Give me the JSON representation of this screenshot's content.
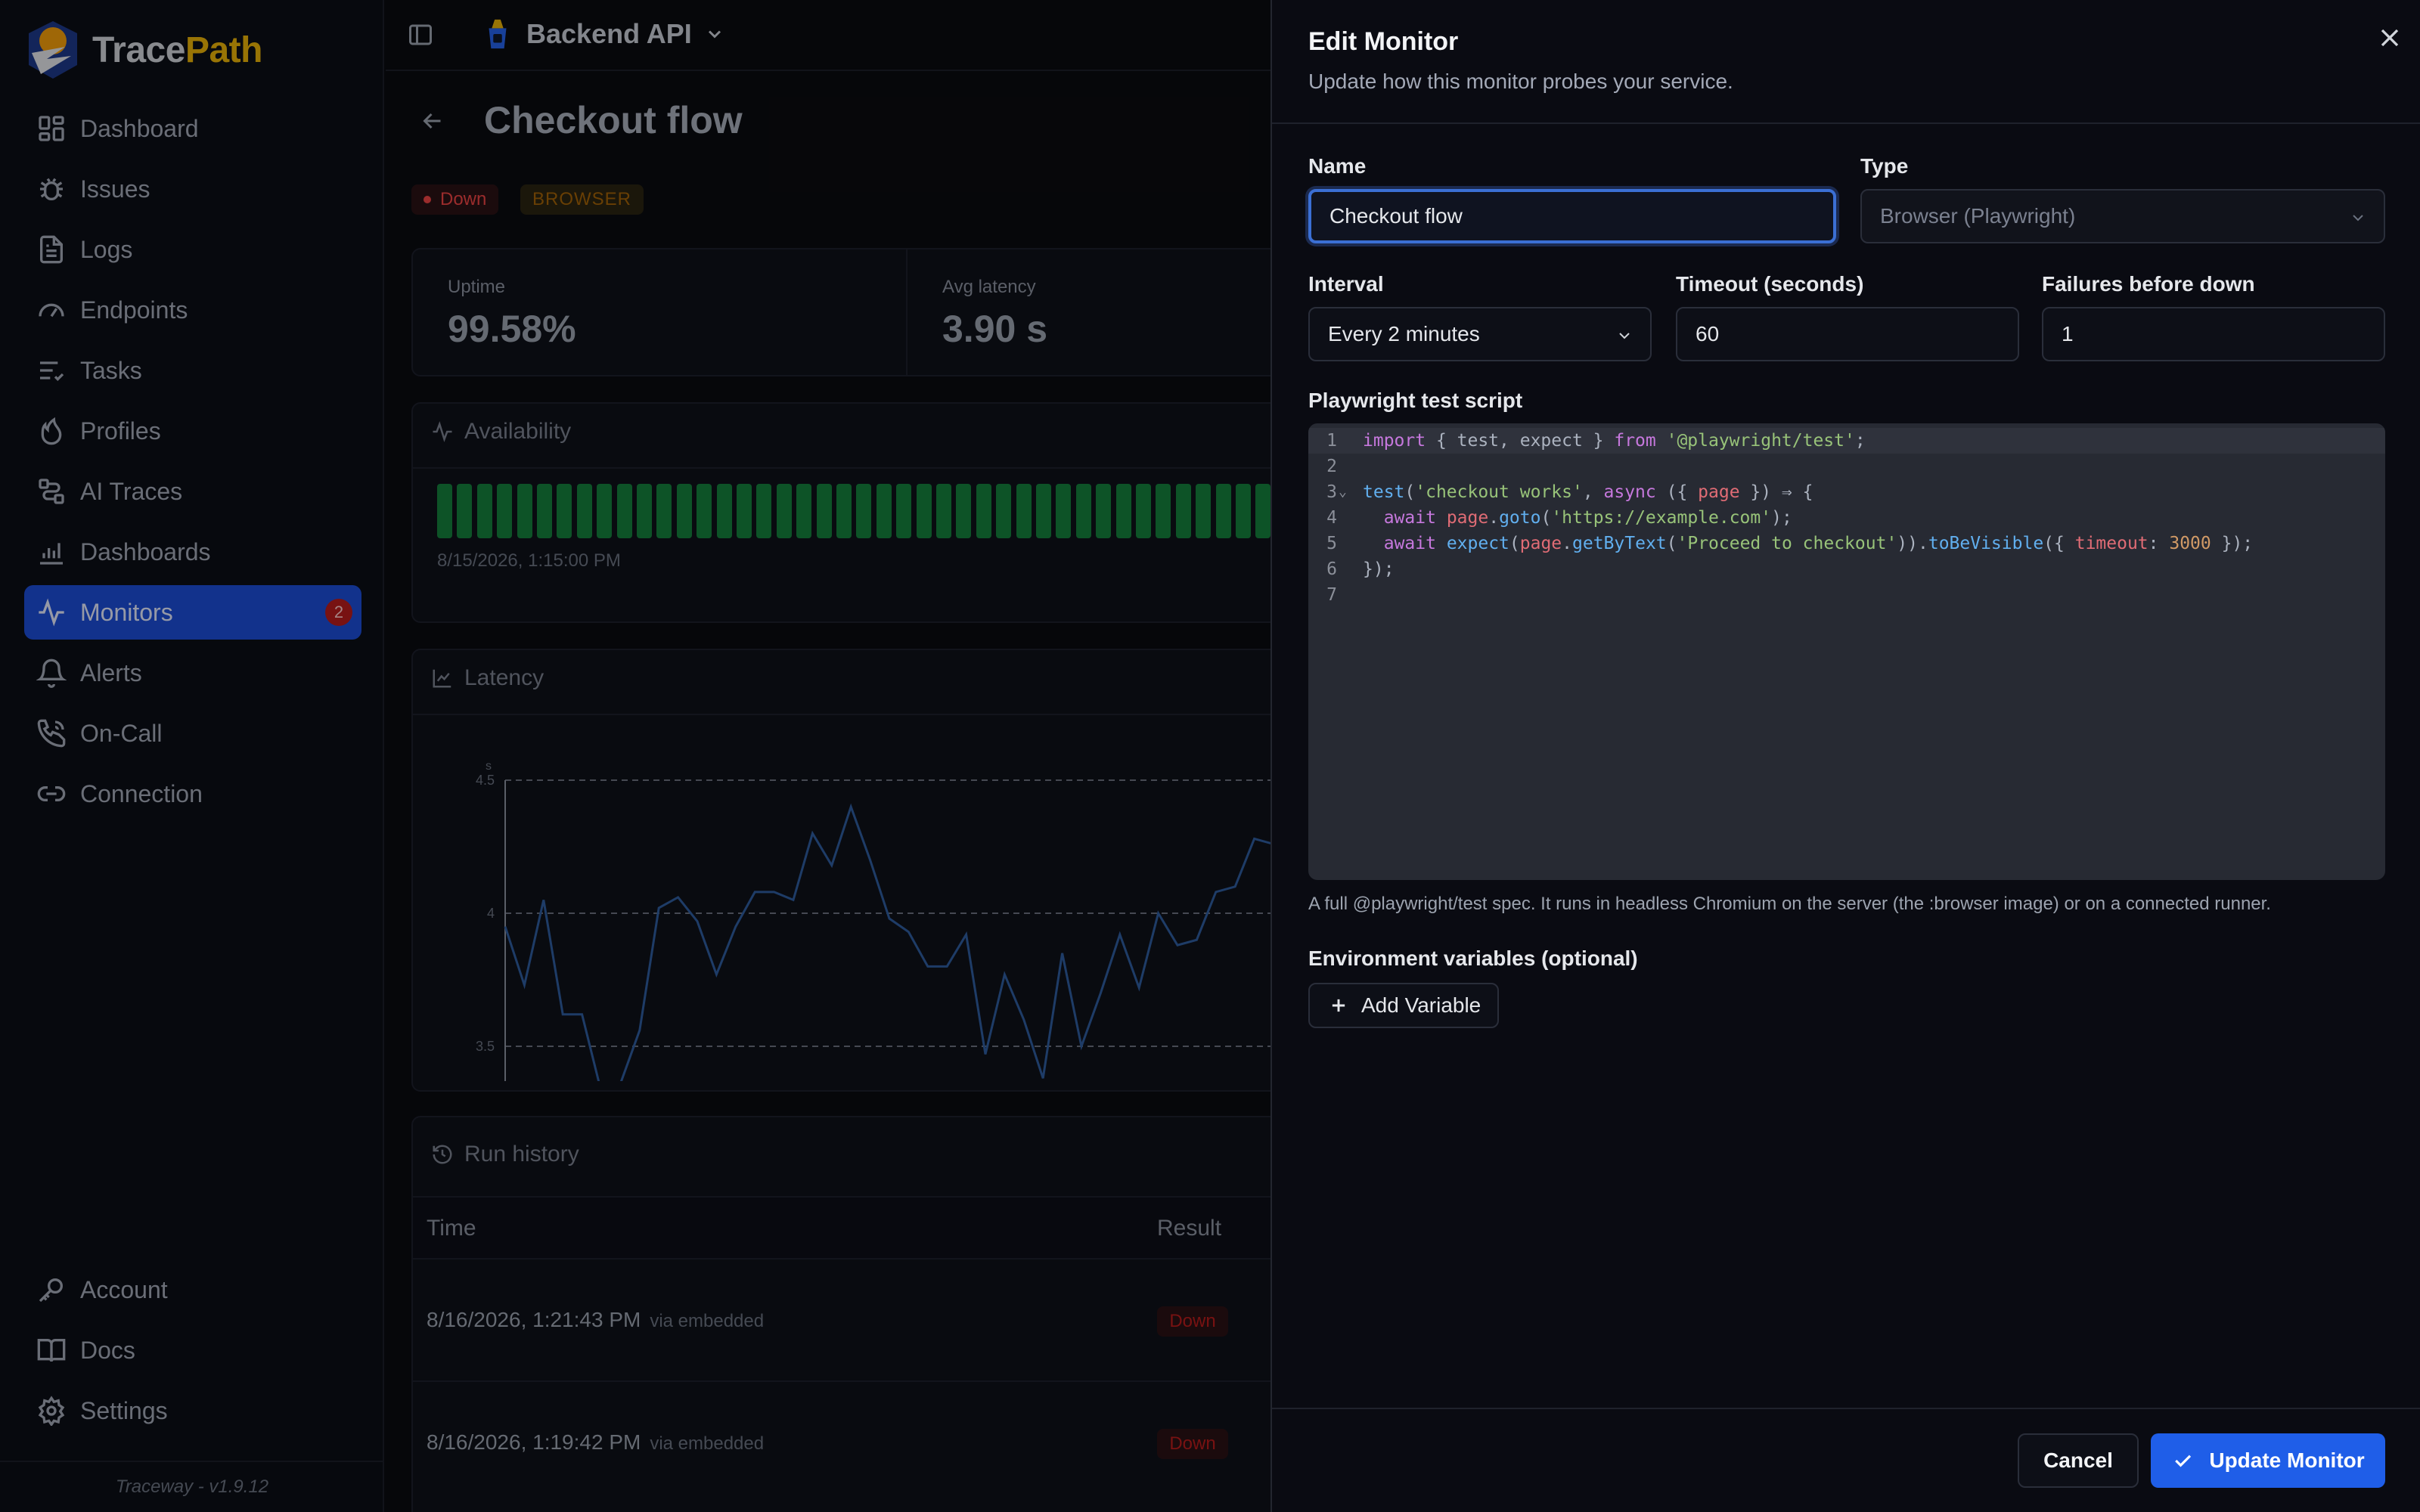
{
  "app": {
    "name_part1": "Trace",
    "name_part2": "Path",
    "version": "Traceway - v1.9.12"
  },
  "sidebar": {
    "items": [
      {
        "label": "Dashboard",
        "icon": "grid-icon"
      },
      {
        "label": "Issues",
        "icon": "bug-icon"
      },
      {
        "label": "Logs",
        "icon": "file-text-icon"
      },
      {
        "label": "Endpoints",
        "icon": "gauge-icon"
      },
      {
        "label": "Tasks",
        "icon": "list-checks-icon"
      },
      {
        "label": "Profiles",
        "icon": "flame-icon"
      },
      {
        "label": "AI Traces",
        "icon": "route-icon"
      },
      {
        "label": "Dashboards",
        "icon": "bar-chart-icon"
      },
      {
        "label": "Monitors",
        "icon": "activity-icon",
        "badge": "2",
        "active": true
      },
      {
        "label": "Alerts",
        "icon": "bell-icon"
      },
      {
        "label": "On-Call",
        "icon": "phone-icon"
      },
      {
        "label": "Connection",
        "icon": "link-icon"
      }
    ],
    "bottom": [
      {
        "label": "Account",
        "icon": "key-icon"
      },
      {
        "label": "Docs",
        "icon": "book-icon"
      },
      {
        "label": "Settings",
        "icon": "gear-icon"
      }
    ]
  },
  "topbar": {
    "project": "Backend API"
  },
  "page": {
    "title": "Checkout flow",
    "status_badge": "Down",
    "type_badge": "BROWSER",
    "stats": [
      {
        "label": "Uptime",
        "value": "99.58%"
      },
      {
        "label": "Avg latency",
        "value": "3.90 s"
      }
    ],
    "availability": {
      "title": "Availability",
      "timestamp": "8/15/2026, 1:15:00 PM",
      "up_color": "#15803d"
    },
    "latency": {
      "title": "Latency"
    },
    "run_history": {
      "title": "Run history",
      "columns": [
        "Time",
        "Result"
      ],
      "rows": [
        {
          "time": "8/16/2026, 1:21:43 PM",
          "via": "via embedded",
          "result": "Down"
        },
        {
          "time": "8/16/2026, 1:19:42 PM",
          "via": "via embedded",
          "result": "Down"
        }
      ]
    }
  },
  "chart_data": {
    "type": "line",
    "title": "Latency",
    "ylabel": "s",
    "ylim": [
      3.25,
      4.5
    ],
    "yticks": [
      "4.5",
      "4",
      "3.5"
    ],
    "grid": true,
    "series": [
      {
        "values": [
          3.95,
          3.73,
          4.05,
          3.62,
          3.62,
          3.33,
          3.36,
          3.56,
          4.02,
          4.06,
          3.97,
          3.77,
          3.95,
          4.08,
          4.08,
          4.05,
          4.3,
          4.18,
          4.4,
          4.2,
          3.98,
          3.93,
          3.8,
          3.8,
          3.92,
          3.47,
          3.77,
          3.6,
          3.38,
          3.85,
          3.5,
          3.7,
          3.92,
          3.72,
          4.0,
          3.88,
          3.9,
          4.08,
          4.1,
          4.28,
          4.26
        ]
      }
    ]
  },
  "modal": {
    "title": "Edit Monitor",
    "subtitle": "Update how this monitor probes your service.",
    "name_label": "Name",
    "name_value": "Checkout flow",
    "type_label": "Type",
    "type_value": "Browser (Playwright)",
    "interval_label": "Interval",
    "interval_value": "Every 2 minutes",
    "timeout_label": "Timeout (seconds)",
    "timeout_value": "60",
    "failures_label": "Failures before down",
    "failures_value": "1",
    "script_label": "Playwright test script",
    "script_lines": [
      "import { test, expect } from '@playwright/test';",
      "",
      "test('checkout works', async ({ page }) => {",
      "  await page.goto('https://example.com');",
      "  await expect(page.getByText('Proceed to checkout')).toBeVisible({ timeout: 3000 });",
      "});",
      ""
    ],
    "script_hint": "A full @playwright/test spec. It runs in headless Chromium on the server (the :browser image) or on a connected runner.",
    "env_label": "Environment variables (optional)",
    "add_variable": "Add Variable",
    "cancel": "Cancel",
    "submit": "Update Monitor"
  }
}
